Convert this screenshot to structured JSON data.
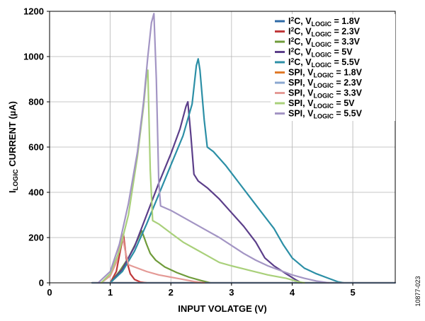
{
  "figure_id": "10877-023",
  "chart_data": {
    "type": "line",
    "title": "",
    "xlabel": "INPUT VOLATGE (V)",
    "ylabel": {
      "main": "I",
      "sub": "LOGIC",
      "rest": " CURRENT (µA)"
    },
    "xlim": [
      0,
      5.7
    ],
    "ylim": [
      0,
      1200
    ],
    "xticks": [
      0,
      1,
      2,
      3,
      4,
      5
    ],
    "yticks": [
      0,
      200,
      400,
      600,
      800,
      1000,
      1200
    ],
    "grid": true,
    "legend_position": "top-right",
    "series": [
      {
        "name": "I2C, VLOGIC = 1.8V",
        "label": {
          "proto": "I",
          "proto_sup": "2",
          "proto_rest": "C",
          "pre": ", V",
          "sub": "LOGIC",
          "post": " = 1.8V"
        },
        "color": "#2e6aa6",
        "points": [
          [
            0.7,
            0
          ],
          [
            1.0,
            0
          ],
          [
            5.7,
            0
          ]
        ]
      },
      {
        "name": "I2C, VLOGIC = 2.3V",
        "label": {
          "proto": "I",
          "proto_sup": "2",
          "proto_rest": "C",
          "pre": ", V",
          "sub": "LOGIC",
          "post": " = 2.3V"
        },
        "color": "#c0393b",
        "points": [
          [
            1.0,
            0
          ],
          [
            1.1,
            50
          ],
          [
            1.18,
            160
          ],
          [
            1.22,
            210
          ],
          [
            1.27,
            100
          ],
          [
            1.33,
            40
          ],
          [
            1.4,
            15
          ],
          [
            1.5,
            3
          ],
          [
            1.6,
            0
          ]
        ]
      },
      {
        "name": "I2C, VLOGIC = 3.3V",
        "label": {
          "proto": "I",
          "proto_sup": "2",
          "proto_rest": "C",
          "pre": ", V",
          "sub": "LOGIC",
          "post": " = 3.3V"
        },
        "color": "#6f9b3a",
        "points": [
          [
            1.0,
            0
          ],
          [
            1.15,
            50
          ],
          [
            1.3,
            110
          ],
          [
            1.45,
            190
          ],
          [
            1.52,
            230
          ],
          [
            1.6,
            170
          ],
          [
            1.66,
            130
          ],
          [
            1.75,
            100
          ],
          [
            1.9,
            70
          ],
          [
            2.1,
            45
          ],
          [
            2.3,
            25
          ],
          [
            2.5,
            10
          ],
          [
            2.65,
            0
          ]
        ]
      },
      {
        "name": "I2C, VLOGIC = 5V",
        "label": {
          "proto": "I",
          "proto_sup": "2",
          "proto_rest": "C",
          "pre": ", V",
          "sub": "LOGIC",
          "post": " = 5V"
        },
        "color": "#5c3f8a",
        "points": [
          [
            1.0,
            0
          ],
          [
            1.2,
            60
          ],
          [
            1.4,
            160
          ],
          [
            1.6,
            300
          ],
          [
            1.8,
            440
          ],
          [
            2.0,
            570
          ],
          [
            2.15,
            680
          ],
          [
            2.25,
            780
          ],
          [
            2.28,
            800
          ],
          [
            2.33,
            650
          ],
          [
            2.38,
            480
          ],
          [
            2.45,
            450
          ],
          [
            2.6,
            420
          ],
          [
            2.8,
            370
          ],
          [
            3.0,
            310
          ],
          [
            3.2,
            250
          ],
          [
            3.4,
            180
          ],
          [
            3.55,
            110
          ],
          [
            3.7,
            75
          ],
          [
            3.9,
            40
          ],
          [
            4.05,
            15
          ],
          [
            4.15,
            0
          ]
        ]
      },
      {
        "name": "I2C, VLOGIC = 5.5V",
        "label": {
          "proto": "I",
          "proto_sup": "2",
          "proto_rest": "C",
          "pre": ", V",
          "sub": "LOGIC",
          "post": " = 5.5V"
        },
        "color": "#2c8fa6",
        "points": [
          [
            1.0,
            0
          ],
          [
            1.2,
            50
          ],
          [
            1.4,
            140
          ],
          [
            1.6,
            260
          ],
          [
            1.8,
            390
          ],
          [
            2.0,
            520
          ],
          [
            2.2,
            650
          ],
          [
            2.35,
            790
          ],
          [
            2.42,
            960
          ],
          [
            2.45,
            990
          ],
          [
            2.48,
            940
          ],
          [
            2.55,
            720
          ],
          [
            2.6,
            600
          ],
          [
            2.7,
            580
          ],
          [
            2.9,
            520
          ],
          [
            3.1,
            450
          ],
          [
            3.3,
            380
          ],
          [
            3.5,
            310
          ],
          [
            3.7,
            240
          ],
          [
            3.85,
            170
          ],
          [
            4.0,
            110
          ],
          [
            4.2,
            65
          ],
          [
            4.4,
            40
          ],
          [
            4.6,
            20
          ],
          [
            4.75,
            5
          ],
          [
            4.85,
            0
          ]
        ]
      },
      {
        "name": "SPI, VLOGIC = 1.8V",
        "label": {
          "proto": "SPI",
          "proto_sup": "",
          "proto_rest": "",
          "pre": ", V",
          "sub": "LOGIC",
          "post": " = 1.8V"
        },
        "color": "#e07a2a",
        "points": [
          [
            0.7,
            0
          ],
          [
            5.7,
            0
          ]
        ]
      },
      {
        "name": "SPI, VLOGIC = 2.3V",
        "label": {
          "proto": "SPI",
          "proto_sup": "",
          "proto_rest": "",
          "pre": ", V",
          "sub": "LOGIC",
          "post": " = 2.3V"
        },
        "color": "#8aa7d0",
        "points": [
          [
            0.7,
            0
          ],
          [
            5.7,
            0
          ]
        ]
      },
      {
        "name": "SPI, VLOGIC = 3.3V",
        "label": {
          "proto": "SPI",
          "proto_sup": "",
          "proto_rest": "",
          "pre": ", V",
          "sub": "LOGIC",
          "post": " = 3.3V"
        },
        "color": "#e49a96",
        "points": [
          [
            0.85,
            0
          ],
          [
            1.0,
            30
          ],
          [
            1.1,
            90
          ],
          [
            1.17,
            180
          ],
          [
            1.2,
            215
          ],
          [
            1.24,
            150
          ],
          [
            1.3,
            80
          ],
          [
            1.4,
            70
          ],
          [
            1.6,
            50
          ],
          [
            1.8,
            35
          ],
          [
            2.0,
            25
          ],
          [
            2.2,
            15
          ],
          [
            2.4,
            5
          ],
          [
            2.55,
            0
          ]
        ]
      },
      {
        "name": "SPI, VLOGIC = 5V",
        "label": {
          "proto": "SPI",
          "proto_sup": "",
          "proto_rest": "",
          "pre": ", V",
          "sub": "LOGIC",
          "post": " = 5V"
        },
        "color": "#a9d07a",
        "points": [
          [
            0.85,
            0
          ],
          [
            1.0,
            40
          ],
          [
            1.15,
            140
          ],
          [
            1.3,
            300
          ],
          [
            1.45,
            560
          ],
          [
            1.55,
            780
          ],
          [
            1.6,
            920
          ],
          [
            1.62,
            940
          ],
          [
            1.66,
            500
          ],
          [
            1.7,
            275
          ],
          [
            1.8,
            260
          ],
          [
            2.0,
            220
          ],
          [
            2.2,
            180
          ],
          [
            2.4,
            150
          ],
          [
            2.6,
            120
          ],
          [
            2.8,
            90
          ],
          [
            3.0,
            75
          ],
          [
            3.3,
            55
          ],
          [
            3.6,
            35
          ],
          [
            3.9,
            20
          ],
          [
            4.1,
            5
          ],
          [
            4.2,
            0
          ]
        ]
      },
      {
        "name": "SPI, VLOGIC = 5.5V",
        "label": {
          "proto": "SPI",
          "proto_sup": "",
          "proto_rest": "",
          "pre": ", V",
          "sub": "LOGIC",
          "post": " = 5.5V"
        },
        "color": "#a395c4",
        "points": [
          [
            0.8,
            0
          ],
          [
            1.0,
            50
          ],
          [
            1.15,
            170
          ],
          [
            1.3,
            350
          ],
          [
            1.45,
            580
          ],
          [
            1.55,
            800
          ],
          [
            1.62,
            1000
          ],
          [
            1.68,
            1150
          ],
          [
            1.72,
            1190
          ],
          [
            1.76,
            900
          ],
          [
            1.8,
            450
          ],
          [
            1.83,
            340
          ],
          [
            2.0,
            320
          ],
          [
            2.2,
            290
          ],
          [
            2.4,
            260
          ],
          [
            2.6,
            230
          ],
          [
            2.8,
            200
          ],
          [
            3.0,
            165
          ],
          [
            3.2,
            130
          ],
          [
            3.4,
            100
          ],
          [
            3.6,
            75
          ],
          [
            3.8,
            55
          ],
          [
            4.0,
            35
          ],
          [
            4.2,
            20
          ],
          [
            4.4,
            8
          ],
          [
            4.6,
            0
          ]
        ]
      }
    ]
  }
}
